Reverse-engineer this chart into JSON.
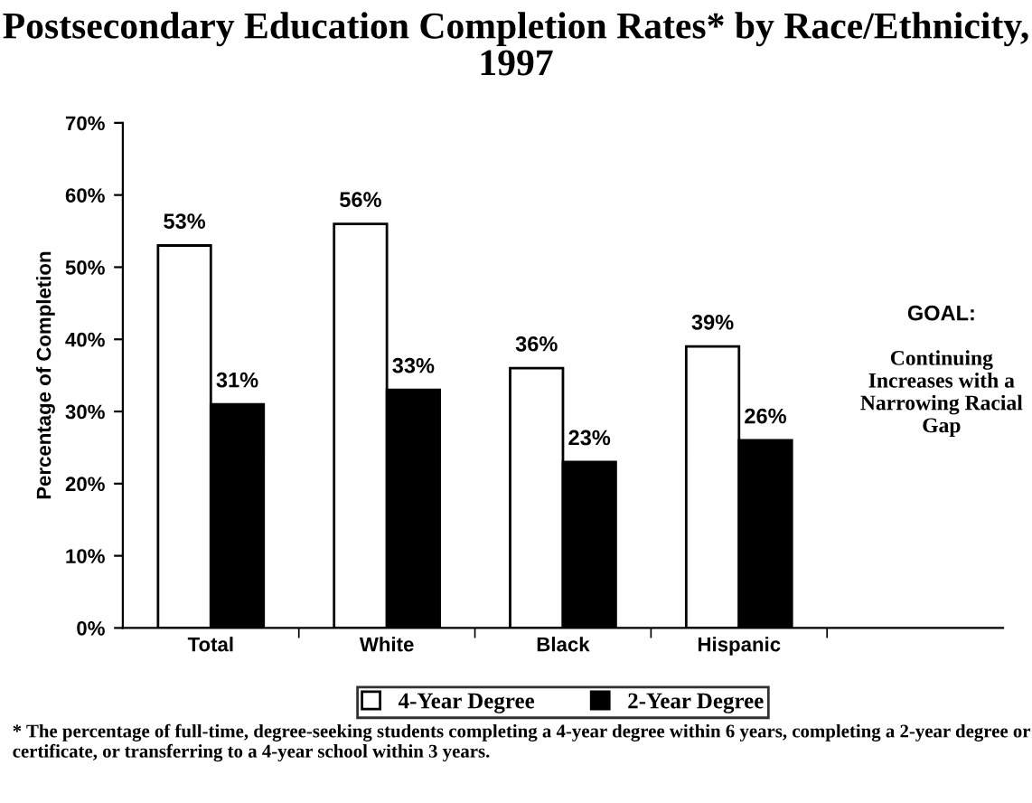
{
  "chart_data": {
    "type": "bar",
    "title": "Postsecondary Education Completion Rates* by Race/Ethnicity, 1997",
    "ylabel": "Percentage of Completion",
    "categories": [
      "Total",
      "White",
      "Black",
      "Hispanic",
      null
    ],
    "series": [
      {
        "name": "4-Year Degree",
        "color": "#ffffff",
        "values": [
          53,
          56,
          36,
          39,
          null
        ],
        "value_labels": [
          "53%",
          "56%",
          "36%",
          "39%",
          null
        ]
      },
      {
        "name": "2-Year Degree",
        "color": "#000000",
        "values": [
          31,
          33,
          23,
          26,
          null
        ],
        "value_labels": [
          "31%",
          "33%",
          "23%",
          "26%",
          null
        ]
      }
    ],
    "ylim": [
      0,
      70
    ],
    "yticks": [
      {
        "value": 0,
        "label": "0%"
      },
      {
        "value": 10,
        "label": "10%"
      },
      {
        "value": 20,
        "label": "20%"
      },
      {
        "value": 30,
        "label": "30%"
      },
      {
        "value": 40,
        "label": "40%"
      },
      {
        "value": 50,
        "label": "50%"
      },
      {
        "value": 60,
        "label": "60%"
      },
      {
        "value": 70,
        "label": "70%"
      }
    ],
    "grid": false,
    "legend": "bottom",
    "annotations": [
      "GOAL:",
      "Continuing Increases with a Narrowing Racial Gap",
      "* The percentage of full-time, degree-seeking students completing a 4-year degree within 6 years, completing a 2-year degree or certificate, or transferring to a 4-year school within 3 years."
    ]
  }
}
